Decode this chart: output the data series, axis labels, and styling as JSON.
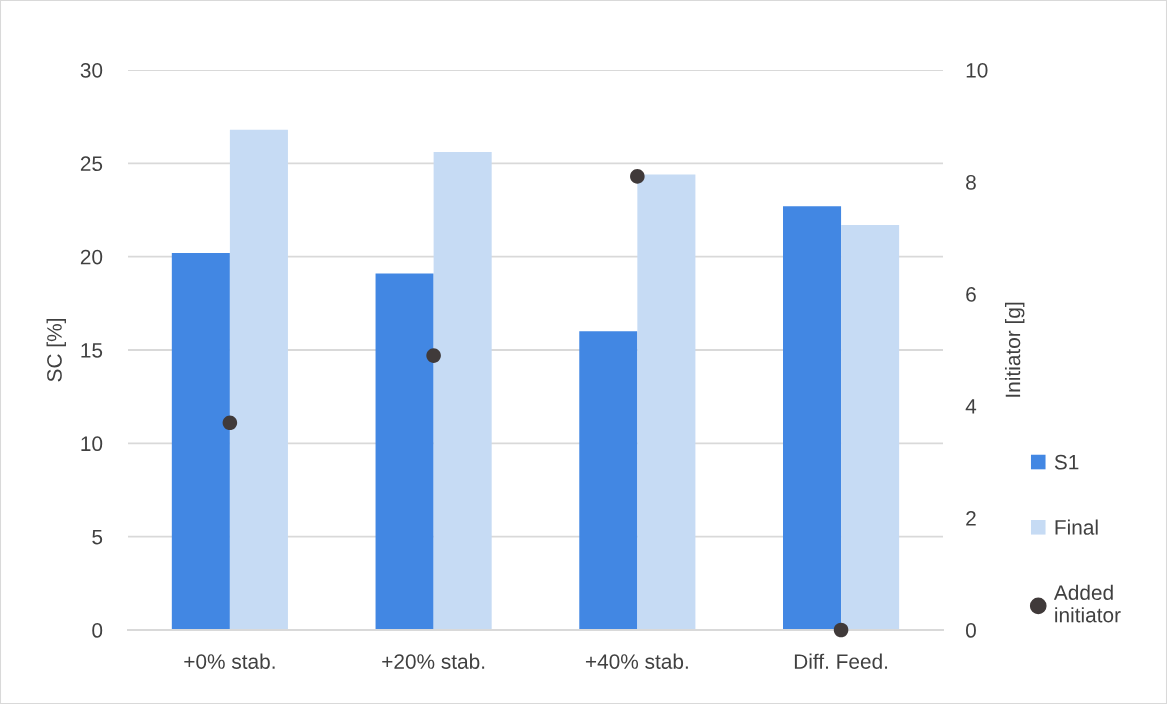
{
  "chart_data": {
    "type": "bar",
    "categories": [
      "+0% stab.",
      "+20% stab.",
      "+40% stab.",
      "Diff. Feed."
    ],
    "series": [
      {
        "name": "S1",
        "color": "#4287e3",
        "values": [
          20.2,
          19.1,
          16.0,
          22.7
        ]
      },
      {
        "name": "Final",
        "color": "#c6dbf4",
        "values": [
          26.8,
          25.6,
          24.4,
          21.7
        ]
      },
      {
        "name": "Added initiator",
        "type": "scatter",
        "axis": "y2",
        "color": "#403a3a",
        "x": [
          "+0% stab.",
          "+20% stab.",
          "+40% stab.",
          "Diff. Feed."
        ],
        "values": [
          3.7,
          4.9,
          8.1,
          0
        ]
      }
    ],
    "ylabel": "SC [%]",
    "y2label": "Initiator [g]",
    "ylim": [
      0,
      30
    ],
    "yticks": [
      0,
      5,
      10,
      15,
      20,
      25,
      30
    ],
    "y2lim": [
      0,
      10
    ],
    "y2ticks": [
      0,
      2,
      4,
      6,
      8,
      10
    ],
    "grid": "y",
    "legend": "right",
    "marker": "circle"
  }
}
